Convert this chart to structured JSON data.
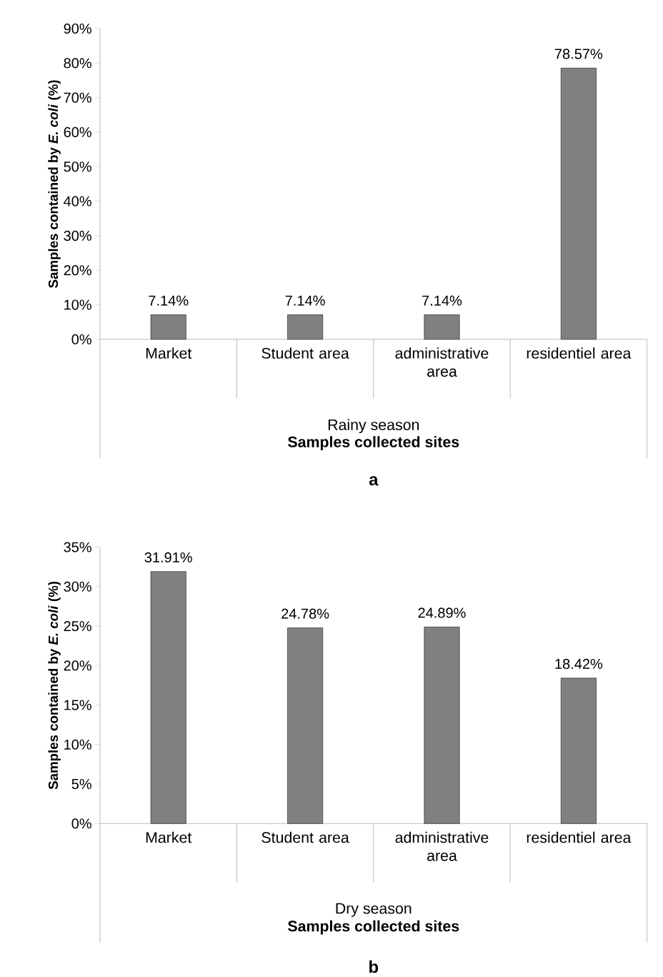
{
  "chart_data": [
    {
      "type": "bar",
      "title": "a",
      "xlabel": "Samples collected sites",
      "ylabel": "**Samples contained by *E. coli* (%)**",
      "annotations": [
        "Rainy season"
      ],
      "categories": [
        "Market",
        "Student area",
        "administrative area",
        "residentiel area"
      ],
      "values": [
        7.14,
        7.14,
        7.14,
        78.57
      ],
      "value_labels": [
        "7.14%",
        "7.14%",
        "7.14%",
        "78.57%"
      ],
      "color": "#808080",
      "ylim": [
        0,
        90
      ],
      "yticks": [
        {
          "value": 0,
          "label": "0%"
        },
        {
          "value": 10,
          "label": "10%"
        },
        {
          "value": 20,
          "label": "20%"
        },
        {
          "value": 30,
          "label": "30%"
        },
        {
          "value": 40,
          "label": "40%"
        },
        {
          "value": 50,
          "label": "50%"
        },
        {
          "value": 60,
          "label": "60%"
        },
        {
          "value": 70,
          "label": "70%"
        },
        {
          "value": 80,
          "label": "80%"
        },
        {
          "value": 90,
          "label": "90%"
        }
      ],
      "grid": false
    },
    {
      "type": "bar",
      "title": "b",
      "xlabel": "Samples collected sites",
      "ylabel": "**Samples contained by *E. coli* (%)**",
      "annotations": [
        "Dry season"
      ],
      "categories": [
        "Market",
        "Student area",
        "administrative area",
        "residentiel area"
      ],
      "values": [
        31.91,
        24.78,
        24.89,
        18.42
      ],
      "value_labels": [
        "31.91%",
        "24.78%",
        "24.89%",
        "18.42%"
      ],
      "color": "#808080",
      "ylim": [
        0,
        35
      ],
      "yticks": [
        {
          "value": 0,
          "label": "0%"
        },
        {
          "value": 5,
          "label": "5%"
        },
        {
          "value": 10,
          "label": "10%"
        },
        {
          "value": 15,
          "label": "15%"
        },
        {
          "value": 20,
          "label": "20%"
        },
        {
          "value": 25,
          "label": "25%"
        },
        {
          "value": 30,
          "label": "30%"
        },
        {
          "value": 35,
          "label": "35%"
        }
      ],
      "grid": false
    }
  ]
}
